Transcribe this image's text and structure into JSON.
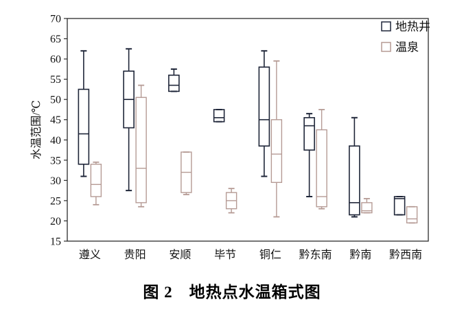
{
  "figure": {
    "caption": "图 2　地热点水温箱式图"
  },
  "chart_data": {
    "type": "boxplot",
    "title": "",
    "xlabel": "",
    "ylabel": "水温范围/℃",
    "ylim": [
      15,
      70
    ],
    "yticks": [
      15,
      20,
      25,
      30,
      35,
      40,
      45,
      50,
      55,
      60,
      65,
      70
    ],
    "grid": false,
    "legend_position": "top-right-inside",
    "axis_color": "#2b2b2b",
    "categories": [
      "遵义",
      "贵阳",
      "安顺",
      "毕节",
      "铜仁",
      "黔东南",
      "黔南",
      "黔西南"
    ],
    "series": [
      {
        "name": "地热井",
        "color": "#1e2538",
        "boxes": [
          {
            "low": 31,
            "q1": 34,
            "median": 41.5,
            "q3": 52.5,
            "high": 62
          },
          {
            "low": 27.5,
            "q1": 43,
            "median": 50,
            "q3": 57,
            "high": 62.5
          },
          {
            "low": 52,
            "q1": 52,
            "median": 53.5,
            "q3": 56,
            "high": 57.5
          },
          {
            "low": 44.5,
            "q1": 44.5,
            "median": 45.5,
            "q3": 47.5,
            "high": 47.5
          },
          {
            "low": 31,
            "q1": 38.5,
            "median": 45,
            "q3": 58,
            "high": 62
          },
          {
            "low": 26,
            "q1": 37.5,
            "median": 43.5,
            "q3": 45.5,
            "high": 46.5
          },
          {
            "low": 21,
            "q1": 21.5,
            "median": 24.5,
            "q3": 38.5,
            "high": 45.5
          },
          {
            "low": 21.5,
            "q1": 21.5,
            "median": 25.5,
            "q3": 26,
            "high": 26
          }
        ]
      },
      {
        "name": "温泉",
        "color": "#b59a94",
        "boxes": [
          {
            "low": 24,
            "q1": 26,
            "median": 29,
            "q3": 34,
            "high": 34.5
          },
          {
            "low": 23.5,
            "q1": 24.5,
            "median": 33,
            "q3": 50.5,
            "high": 53.5
          },
          {
            "low": 26.5,
            "q1": 27,
            "median": 32,
            "q3": 37,
            "high": 37
          },
          {
            "low": 22,
            "q1": 23,
            "median": 25,
            "q3": 27,
            "high": 28
          },
          {
            "low": 21,
            "q1": 29.5,
            "median": 36.5,
            "q3": 45,
            "high": 59.5
          },
          {
            "low": 23,
            "q1": 23.5,
            "median": 26,
            "q3": 42.5,
            "high": 47.5
          },
          {
            "low": 22,
            "q1": 22,
            "median": 22.5,
            "q3": 24.5,
            "high": 25.5
          },
          {
            "low": 19.5,
            "q1": 19.5,
            "median": 20.5,
            "q3": 23.5,
            "high": 23.5
          }
        ]
      }
    ]
  }
}
